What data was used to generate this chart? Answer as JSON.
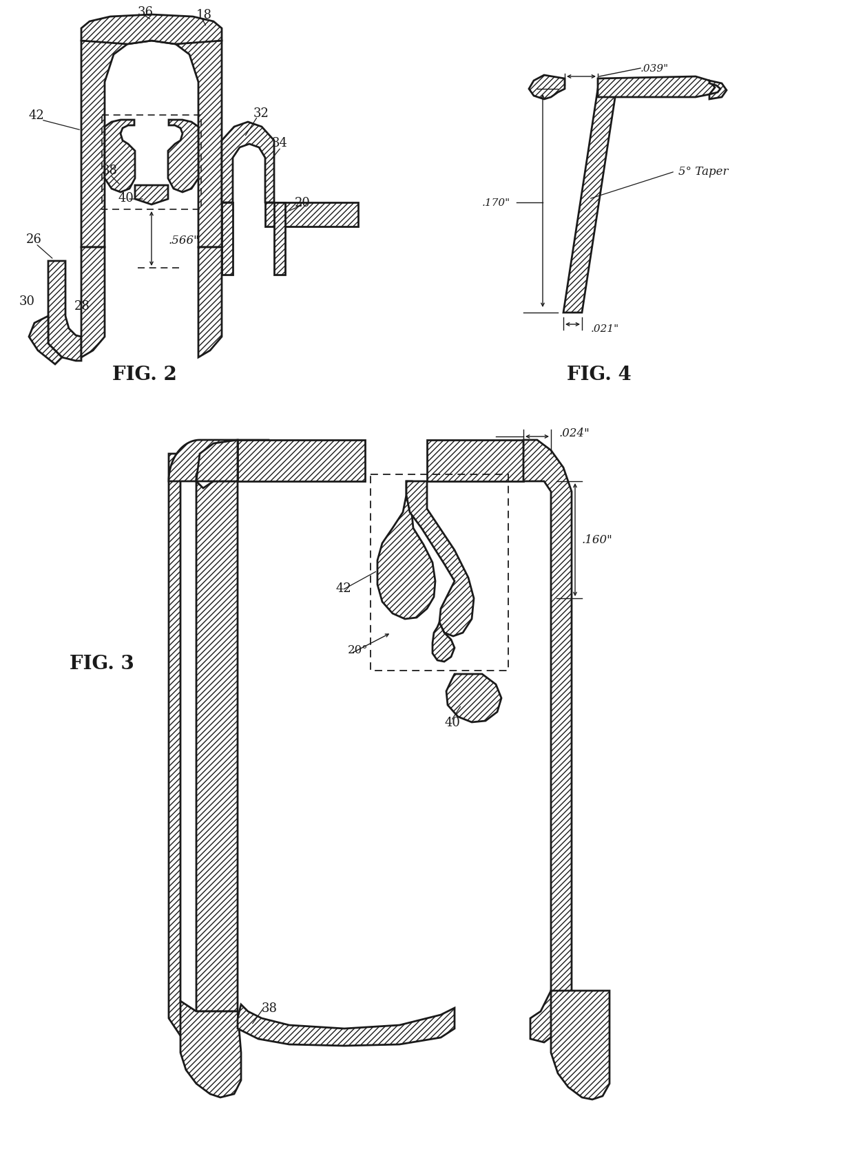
{
  "background_color": "#ffffff",
  "line_color": "#1a1a1a",
  "fig2_label": "FIG. 2",
  "fig3_label": "FIG. 3",
  "fig4_label": "FIG. 4"
}
